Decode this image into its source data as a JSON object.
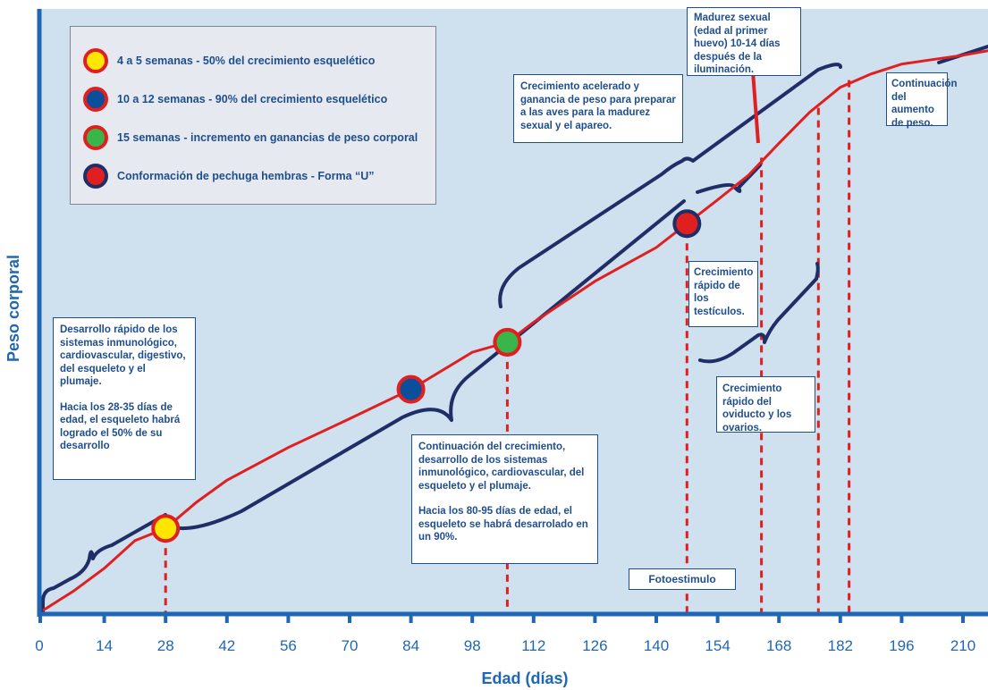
{
  "colors": {
    "background": "#cfe0ef",
    "axis": "#1f67b5",
    "growth_curve": "#e02020",
    "brace": "#1f2e66",
    "guide_line": "#e02020",
    "text": "#1f4e8c",
    "dot_yellow": "#ffe600",
    "dot_blue": "#0b4f9c",
    "dot_green": "#3ab54a",
    "dot_red": "#e02020"
  },
  "legend": {
    "items": [
      {
        "label": "4 a 5 semanas - 50% del crecimiento esquelético",
        "fill": "#ffe600",
        "ring": "#e02020"
      },
      {
        "label": "10 a 12 semanas - 90% del crecimiento esquelético",
        "fill": "#0b4f9c",
        "ring": "#e02020"
      },
      {
        "label": "15 semanas - incremento en ganancias de peso corporal",
        "fill": "#3ab54a",
        "ring": "#e02020"
      },
      {
        "label": "Conformación de pechuga hembras - Forma “U”",
        "fill": "#e02020",
        "ring": "#1f2e66"
      }
    ]
  },
  "annotations": {
    "early": [
      "Desarrollo rápido de los sistemas inmunológico, cardiovascular, digestivo, del esqueleto y el plumaje.",
      "Hacia los 28-35 días de edad, el esqueleto habrá logrado el 50% de su desarrollo"
    ],
    "mid": [
      "Continuación del crecimiento, desarrollo de los sistemas inmunológico, cardiovascular, del esqueleto y el plumaje.",
      "Hacia los 80-95 días de edad, el esqueleto se habrá desarrolado en un 90%."
    ],
    "accelerated": "Crecimiento acelerado y ganancia de peso para preparar a las aves para la madurez sexual y el apareo.",
    "maturity": "Madurez sexual (edad al primer huevo) 10-14 días después de la iluminación.",
    "continuation": "Continuación del aumento de peso.",
    "testicles": "Crecimiento rápido de los testículos.",
    "oviduct": "Crecimiento rápido del oviducto y los ovarios.",
    "photostim": "Fotoestimulo"
  },
  "chart_data": {
    "type": "line",
    "title": "",
    "xlabel": "Edad (días)",
    "ylabel": "Peso corporal",
    "xlim": [
      0,
      217
    ],
    "ylim": [
      0,
      100
    ],
    "x_ticks": [
      0,
      14,
      28,
      42,
      56,
      70,
      84,
      98,
      112,
      126,
      140,
      154,
      168,
      182,
      196,
      210
    ],
    "grid": false,
    "legend_position": "top-left",
    "series": [
      {
        "name": "",
        "x": [
          0,
          7,
          14,
          21,
          28,
          35,
          42,
          56,
          70,
          84,
          98,
          106,
          112,
          126,
          140,
          147,
          154,
          161,
          168,
          175,
          182,
          189,
          196,
          203,
          210,
          217
        ],
        "y": [
          0,
          3.5,
          7.6,
          12.6,
          14.8,
          19.5,
          23.5,
          29.4,
          34.6,
          39.9,
          46.6,
          48.4,
          52.0,
          59.4,
          65.5,
          69.8,
          74.1,
          78.5,
          84.3,
          89.9,
          94.4,
          96.8,
          98.6,
          99.4,
          100.2,
          101.2
        ]
      }
    ],
    "markers": [
      {
        "x": 28,
        "y": 14.8,
        "color": "yellow",
        "legend_index": 0
      },
      {
        "x": 84,
        "y": 39.9,
        "color": "blue",
        "legend_index": 1
      },
      {
        "x": 106,
        "y": 48.4,
        "color": "green",
        "legend_index": 2
      },
      {
        "x": 147,
        "y": 69.8,
        "color": "red",
        "legend_index": 3
      }
    ],
    "guide_lines_x": [
      28,
      106,
      147,
      164,
      177,
      184
    ]
  }
}
